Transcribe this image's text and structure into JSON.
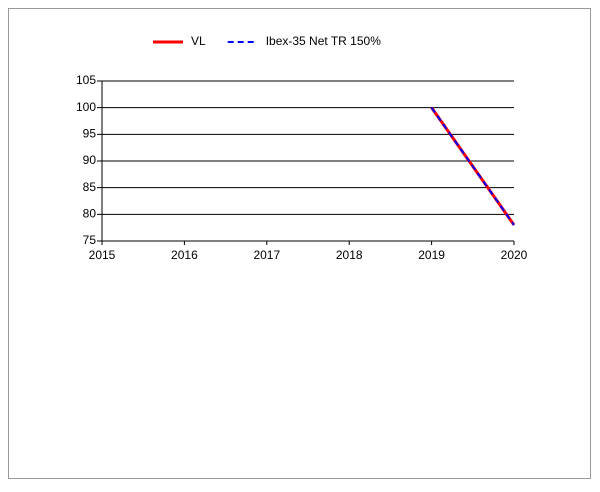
{
  "chart_data": {
    "type": "line",
    "x": [
      2019,
      2020
    ],
    "series": [
      {
        "name": "VL",
        "color": "#ff0000",
        "dash": false,
        "values": [
          100,
          78
        ]
      },
      {
        "name": "Ibex-35 Net TR 150%",
        "color": "#0000ff",
        "dash": true,
        "values": [
          100,
          78
        ]
      }
    ],
    "xlim": [
      2015,
      2020
    ],
    "xticks": [
      2015,
      2016,
      2017,
      2018,
      2019,
      2020
    ],
    "ylim": [
      75,
      105
    ],
    "yticks": [
      75,
      80,
      85,
      90,
      95,
      100,
      105
    ],
    "grid": true,
    "legend": "top"
  }
}
